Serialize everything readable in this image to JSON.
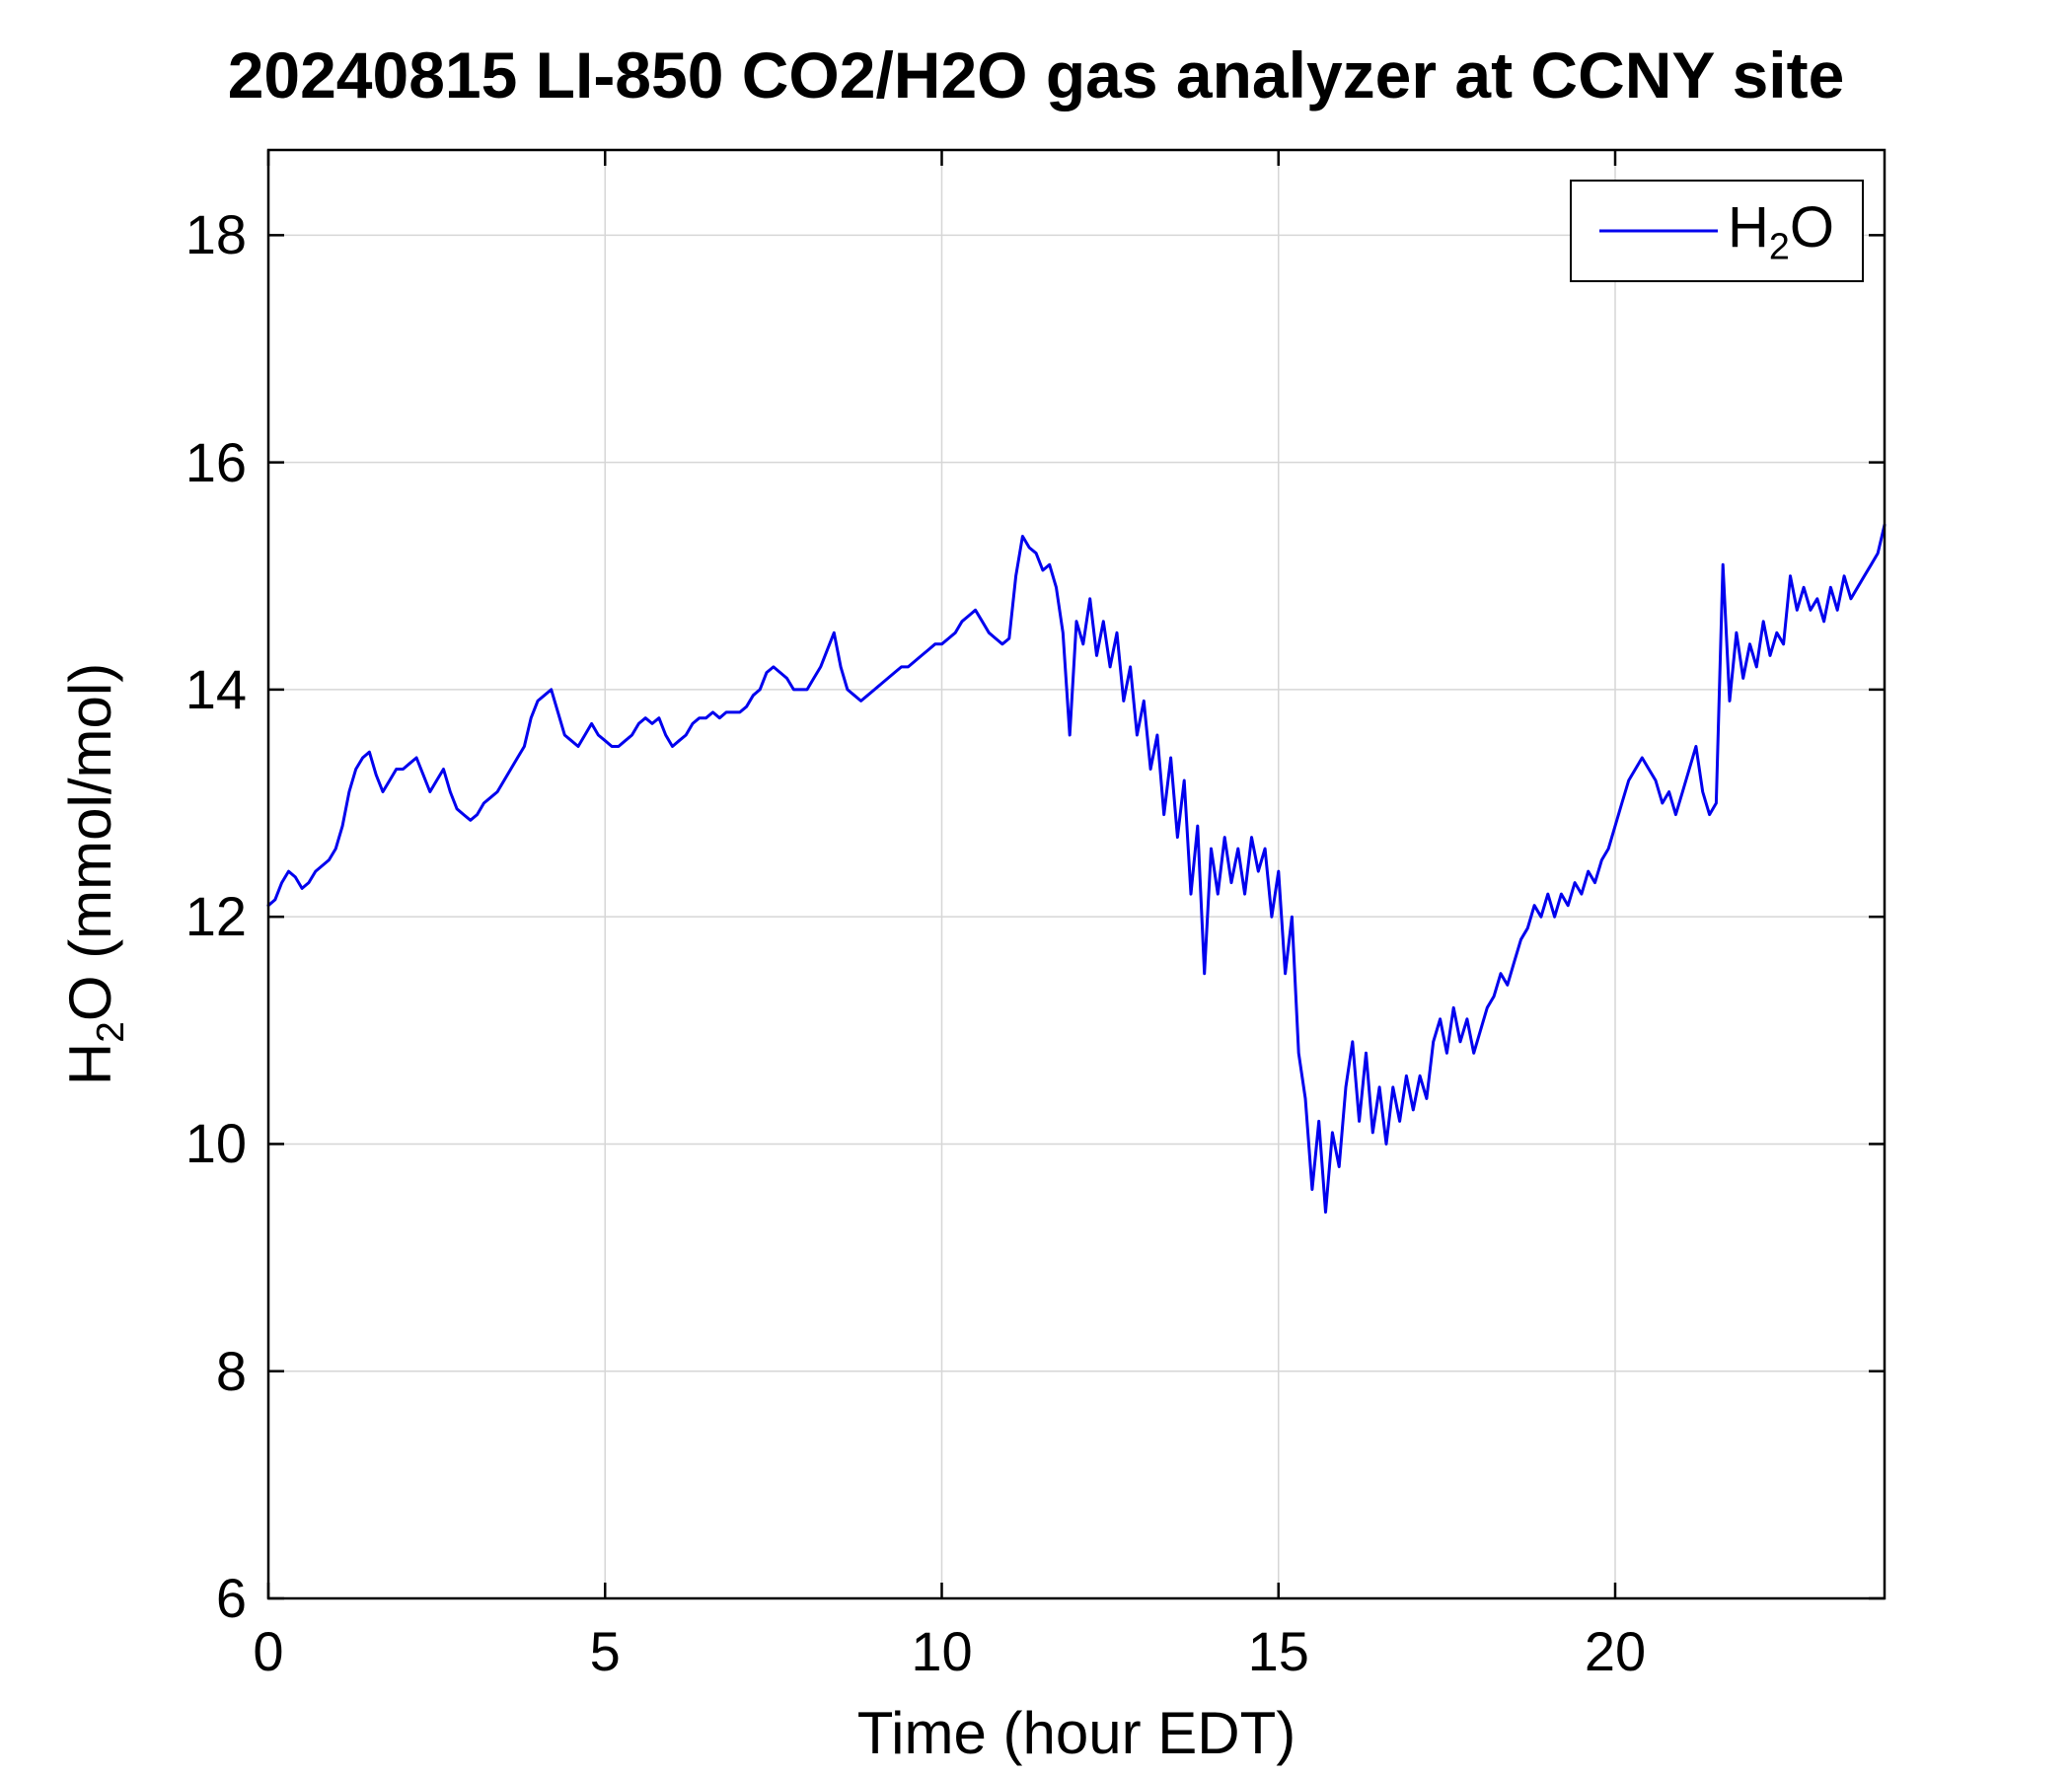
{
  "colors": {
    "line": "#0000EE",
    "grid": "#D6D6D6",
    "axis": "#000000",
    "background": "#FFFFFF"
  },
  "chart_data": {
    "type": "line",
    "title": "20240815 LI-850 CO2/H2O gas analyzer at CCNY site",
    "xlabel": "Time (hour EDT)",
    "ylabel": "H2O (mmol/mol)",
    "ylabel_rich": [
      {
        "t": "H"
      },
      {
        "t": "2",
        "sub": true
      },
      {
        "t": "O (mmol/mol)"
      }
    ],
    "xlim": [
      0,
      24
    ],
    "ylim": [
      6,
      18.75
    ],
    "xticks": [
      0,
      5,
      10,
      15,
      20
    ],
    "yticks": [
      6,
      8,
      10,
      12,
      14,
      16,
      18
    ],
    "grid": true,
    "legend": {
      "position": "top-right",
      "entries": [
        {
          "label": "H2O",
          "rich": [
            {
              "t": "H"
            },
            {
              "t": "2",
              "sub": true
            },
            {
              "t": "O"
            }
          ],
          "color": "#0000EE"
        }
      ]
    },
    "series": [
      {
        "name": "H2O",
        "color": "#0000EE",
        "x_start": 0,
        "x_step": 0.1,
        "y": [
          12.1,
          12.15,
          12.3,
          12.4,
          12.35,
          12.25,
          12.3,
          12.4,
          12.45,
          12.5,
          12.6,
          12.8,
          13.1,
          13.3,
          13.4,
          13.45,
          13.25,
          13.1,
          13.2,
          13.3,
          13.3,
          13.35,
          13.4,
          13.25,
          13.1,
          13.2,
          13.3,
          13.1,
          12.95,
          12.9,
          12.85,
          12.9,
          13.0,
          13.05,
          13.1,
          13.2,
          13.3,
          13.4,
          13.5,
          13.75,
          13.9,
          13.95,
          14.0,
          13.8,
          13.6,
          13.55,
          13.5,
          13.6,
          13.7,
          13.6,
          13.55,
          13.5,
          13.5,
          13.55,
          13.6,
          13.7,
          13.75,
          13.7,
          13.75,
          13.6,
          13.5,
          13.55,
          13.6,
          13.7,
          13.75,
          13.75,
          13.8,
          13.75,
          13.8,
          13.8,
          13.8,
          13.85,
          13.95,
          14.0,
          14.15,
          14.2,
          14.15,
          14.1,
          14.0,
          14.0,
          14.0,
          14.1,
          14.2,
          14.35,
          14.5,
          14.2,
          14.0,
          13.95,
          13.9,
          13.95,
          14.0,
          14.05,
          14.1,
          14.15,
          14.2,
          14.2,
          14.25,
          14.3,
          14.35,
          14.4,
          14.4,
          14.45,
          14.5,
          14.6,
          14.65,
          14.7,
          14.6,
          14.5,
          14.45,
          14.4,
          14.45,
          15.0,
          15.35,
          15.25,
          15.2,
          15.05,
          15.1,
          14.9,
          14.5,
          13.6,
          14.6,
          14.4,
          14.8,
          14.3,
          14.6,
          14.2,
          14.5,
          13.9,
          14.2,
          13.6,
          13.9,
          13.3,
          13.6,
          12.9,
          13.4,
          12.7,
          13.2,
          12.2,
          12.8,
          11.5,
          12.6,
          12.2,
          12.7,
          12.3,
          12.6,
          12.2,
          12.7,
          12.4,
          12.6,
          12.0,
          12.4,
          11.5,
          12.0,
          10.8,
          10.4,
          9.6,
          10.2,
          9.4,
          10.1,
          9.8,
          10.5,
          10.9,
          10.2,
          10.8,
          10.1,
          10.5,
          10.0,
          10.5,
          10.2,
          10.6,
          10.3,
          10.6,
          10.4,
          10.9,
          11.1,
          10.8,
          11.2,
          10.9,
          11.1,
          10.8,
          11.0,
          11.2,
          11.3,
          11.5,
          11.4,
          11.6,
          11.8,
          11.9,
          12.1,
          12.0,
          12.2,
          12.0,
          12.2,
          12.1,
          12.3,
          12.2,
          12.4,
          12.3,
          12.5,
          12.6,
          12.8,
          13.0,
          13.2,
          13.3,
          13.4,
          13.3,
          13.2,
          13.0,
          13.1,
          12.9,
          13.1,
          13.3,
          13.5,
          13.1,
          12.9,
          13.0,
          15.1,
          13.9,
          14.5,
          14.1,
          14.4,
          14.2,
          14.6,
          14.3,
          14.5,
          14.4,
          15.0,
          14.7,
          14.9,
          14.7,
          14.8,
          14.6,
          14.9,
          14.7,
          15.0,
          14.8,
          14.9,
          15.0,
          15.1,
          15.2,
          15.45
        ]
      }
    ]
  }
}
